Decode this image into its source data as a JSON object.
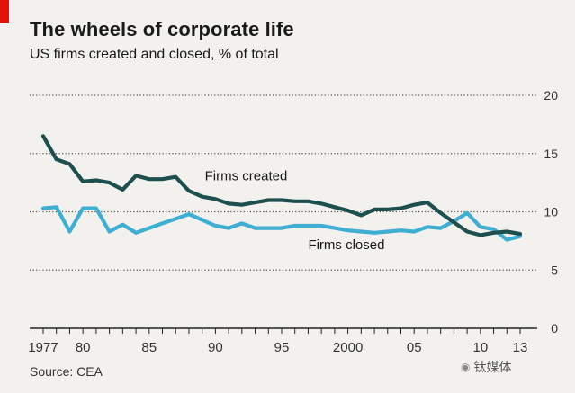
{
  "header": {
    "title": "The wheels of corporate life",
    "subtitle": "US firms created and closed, % of total"
  },
  "footer": {
    "source": "Source: CEA",
    "watermark": "钛媒体",
    "watermark_icon": "weibo-logo-icon"
  },
  "colors": {
    "created": "#1d4f4f",
    "closed": "#3eaed2",
    "grid": "#555555",
    "axis": "#222222",
    "accent": "#e3120b"
  },
  "chart_data": {
    "type": "line",
    "title": "The wheels of corporate life",
    "subtitle": "US firms created and closed, % of total",
    "xlabel": "",
    "ylabel": "%",
    "xlim": [
      1977,
      2013
    ],
    "ylim": [
      0,
      20
    ],
    "yticks": [
      0,
      5,
      10,
      15,
      20
    ],
    "xtick_labels": [
      {
        "x": 1977,
        "label": "1977"
      },
      {
        "x": 1980,
        "label": "80"
      },
      {
        "x": 1985,
        "label": "85"
      },
      {
        "x": 1990,
        "label": "90"
      },
      {
        "x": 1995,
        "label": "95"
      },
      {
        "x": 2000,
        "label": "2000"
      },
      {
        "x": 2005,
        "label": "05"
      },
      {
        "x": 2010,
        "label": "10"
      },
      {
        "x": 2013,
        "label": "13"
      }
    ],
    "x": [
      1977,
      1978,
      1979,
      1980,
      1981,
      1982,
      1983,
      1984,
      1985,
      1986,
      1987,
      1988,
      1989,
      1990,
      1991,
      1992,
      1993,
      1994,
      1995,
      1996,
      1997,
      1998,
      1999,
      2000,
      2001,
      2002,
      2003,
      2004,
      2005,
      2006,
      2007,
      2008,
      2009,
      2010,
      2011,
      2012,
      2013
    ],
    "series": [
      {
        "name": "Firms created",
        "values": [
          16.5,
          14.5,
          14.1,
          12.6,
          12.7,
          12.5,
          11.9,
          13.1,
          12.8,
          12.8,
          13.0,
          11.8,
          11.3,
          11.1,
          10.7,
          10.6,
          10.8,
          11.0,
          11.0,
          10.9,
          10.9,
          10.7,
          10.4,
          10.1,
          9.7,
          10.2,
          10.2,
          10.3,
          10.6,
          10.8,
          9.9,
          9.1,
          8.3,
          8.0,
          8.2,
          8.3,
          8.1
        ]
      },
      {
        "name": "Firms closed",
        "values": [
          10.3,
          10.4,
          8.3,
          10.3,
          10.3,
          8.3,
          8.9,
          8.2,
          8.6,
          9.0,
          9.4,
          9.8,
          9.3,
          8.8,
          8.6,
          9.0,
          8.6,
          8.6,
          8.6,
          8.8,
          8.8,
          8.8,
          8.6,
          8.4,
          8.3,
          8.2,
          8.3,
          8.4,
          8.3,
          8.7,
          8.6,
          9.2,
          9.9,
          8.7,
          8.5,
          7.6,
          7.9
        ]
      }
    ],
    "annotations": [
      {
        "text": "Firms created",
        "series": "Firms created"
      },
      {
        "text": "Firms closed",
        "series": "Firms closed"
      }
    ],
    "grid": true
  }
}
